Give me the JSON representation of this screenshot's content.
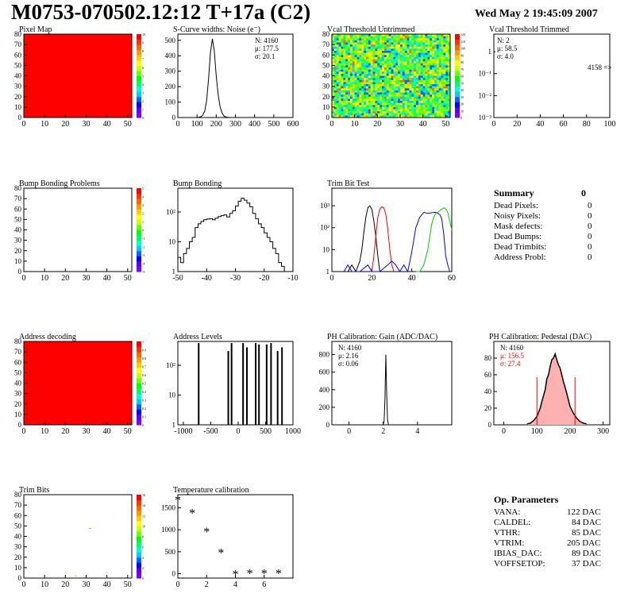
{
  "header": {
    "title": "M0753-070502.12:12 T+17a (C2)",
    "date": "Wed May  2 19:45:09 2007"
  },
  "colors": {
    "map_red": "#ff0000",
    "hist_red": "#ff0000",
    "hist_blue": "#0000ff",
    "hist_green": "#00cc00",
    "palette": [
      "#8000ff",
      "#5a00ff",
      "#0000ff",
      "#0066ff",
      "#00ccff",
      "#00ffcc",
      "#00ff66",
      "#00ff00",
      "#66ff00",
      "#ccff00",
      "#ffff00",
      "#ffcc00",
      "#ff9900",
      "#ff6600",
      "#ff3300",
      "#ff0000"
    ]
  },
  "chart_data": [
    {
      "id": "pixel_map",
      "type": "heatmap",
      "title": "Pixel Map",
      "xlim": [
        0,
        52
      ],
      "ylim": [
        0,
        80
      ],
      "xticks": [
        "0",
        "10",
        "20",
        "30",
        "40",
        "50"
      ],
      "yticks": [
        "0",
        "10",
        "20",
        "30",
        "40",
        "50",
        "60",
        "70",
        "80"
      ],
      "zticks": [
        "0",
        "1",
        "2",
        "3",
        "4",
        "5",
        "6",
        "7",
        "8",
        "9",
        "10"
      ],
      "fill": "uniform",
      "value": 10
    },
    {
      "id": "scurve",
      "type": "line",
      "title": "S-Curve widths: Noise (e⁻)",
      "xlim": [
        0,
        600
      ],
      "ylim": [
        0,
        540
      ],
      "xticks": [
        "0",
        "100",
        "200",
        "300",
        "400",
        "500",
        "600"
      ],
      "yticks": [
        "0",
        "100",
        "200",
        "300",
        "400",
        "500"
      ],
      "stats": {
        "N": "4160",
        "mu": "177.5",
        "sigma": "20.1"
      },
      "x": [
        100,
        110,
        120,
        130,
        140,
        150,
        160,
        170,
        180,
        190,
        200,
        210,
        220,
        230,
        240,
        250,
        260,
        270
      ],
      "y": [
        0,
        2,
        5,
        15,
        40,
        110,
        250,
        420,
        510,
        430,
        270,
        150,
        70,
        30,
        10,
        4,
        1,
        0
      ]
    },
    {
      "id": "vcal_untrimmed",
      "type": "heatmap",
      "title": "Vcal Threshold Untrimmed",
      "xlim": [
        0,
        52
      ],
      "ylim": [
        0,
        80
      ],
      "xticks": [
        "0",
        "10",
        "20",
        "30",
        "40",
        "50"
      ],
      "yticks": [
        "0",
        "10",
        "20",
        "30",
        "40",
        "50",
        "60",
        "70",
        "80"
      ],
      "zticks": [
        "0",
        "10",
        "20",
        "30",
        "40",
        "50",
        "60",
        "70",
        "80",
        "90",
        "100",
        "110",
        "120"
      ],
      "fill": "noise"
    },
    {
      "id": "vcal_trimmed",
      "type": "bar",
      "title": "Vcal Threshold Trimmed",
      "xlim": [
        0,
        100
      ],
      "log_y": true,
      "xticks": [
        "0",
        "20",
        "40",
        "60",
        "80",
        "100"
      ],
      "yticks": [
        "10⁻³",
        "10⁻²",
        "10⁻¹",
        "1"
      ],
      "stats": {
        "N": "2",
        "mu": "58.5",
        "sigma": "4.0"
      },
      "overflow_label": "4158 =>",
      "bars": [
        {
          "x": 54,
          "y": 1
        },
        {
          "x": 63,
          "y": 1
        }
      ]
    },
    {
      "id": "bump_problems",
      "type": "heatmap",
      "title": "Bump Bonding Problems",
      "xlim": [
        0,
        52
      ],
      "ylim": [
        0,
        80
      ],
      "xticks": [
        "0",
        "10",
        "20",
        "30",
        "40",
        "50"
      ],
      "yticks": [
        "0",
        "10",
        "20",
        "30",
        "40",
        "50",
        "60",
        "70",
        "80"
      ],
      "zticks": [
        "-5",
        "-4",
        "-3",
        "-2",
        "-1",
        "0",
        "1",
        "2",
        "3",
        "4",
        "5"
      ],
      "fill": "empty"
    },
    {
      "id": "bump_bonding",
      "type": "line",
      "title": "Bump Bonding",
      "xlim": [
        -50,
        -10
      ],
      "log_y": true,
      "xticks": [
        "-50",
        "-40",
        "-30",
        "-20",
        "-10"
      ],
      "yticks": [
        "1",
        "10",
        "10²"
      ],
      "x": [
        -50,
        -49,
        -48,
        -47,
        -46,
        -45,
        -44,
        -43,
        -42,
        -41,
        -40,
        -39,
        -38,
        -37,
        -36,
        -35,
        -34,
        -33,
        -32,
        -31,
        -30,
        -29,
        -28,
        -27,
        -26,
        -25,
        -24,
        -23,
        -22,
        -21,
        -20,
        -19,
        -18,
        -17,
        -16,
        -15,
        -14,
        -13
      ],
      "y": [
        3,
        2,
        4,
        6,
        10,
        14,
        30,
        40,
        48,
        55,
        58,
        60,
        55,
        62,
        70,
        75,
        80,
        68,
        90,
        110,
        160,
        230,
        290,
        250,
        200,
        150,
        90,
        60,
        40,
        30,
        20,
        14,
        10,
        6,
        4,
        2,
        1.5,
        1
      ]
    },
    {
      "id": "trim_bits_test",
      "type": "line",
      "title": "Trim Bit Test",
      "xlim": [
        0,
        60
      ],
      "log_y": true,
      "xticks": [
        "0",
        "20",
        "40",
        "60"
      ],
      "yticks": [
        "1",
        "10",
        "10²",
        "10³"
      ],
      "series": [
        {
          "color": "#000000",
          "x": [
            8,
            10,
            12,
            14,
            15,
            16,
            17,
            18,
            19,
            20,
            21,
            22,
            23,
            24
          ],
          "y": [
            1,
            2,
            1,
            3,
            10,
            60,
            300,
            800,
            1000,
            700,
            200,
            40,
            5,
            1
          ]
        },
        {
          "color": "#ff0000",
          "x": [
            20,
            21,
            22,
            23,
            24,
            25,
            26,
            27,
            28,
            29,
            30,
            31
          ],
          "y": [
            1,
            5,
            40,
            300,
            700,
            900,
            800,
            400,
            80,
            10,
            2,
            1
          ]
        },
        {
          "color": "#0000ff",
          "x": [
            6,
            8,
            10,
            14,
            18,
            20,
            24,
            28,
            30,
            32,
            34,
            36,
            38,
            40,
            42,
            44,
            46,
            48,
            50,
            52,
            54,
            55,
            56,
            57,
            58,
            59
          ],
          "y": [
            1,
            2,
            1,
            1,
            2,
            1,
            1,
            2,
            3,
            2,
            1,
            2,
            1,
            8,
            100,
            300,
            500,
            450,
            480,
            500,
            400,
            250,
            50,
            5,
            2,
            1
          ]
        },
        {
          "color": "#00cc00",
          "x": [
            42,
            44,
            46,
            48,
            49,
            50,
            51,
            52,
            53,
            54,
            55,
            56,
            57,
            58,
            59,
            60
          ],
          "y": [
            1,
            1,
            2,
            10,
            40,
            150,
            300,
            450,
            500,
            600,
            700,
            800,
            700,
            500,
            200,
            80
          ]
        }
      ]
    },
    {
      "id": "address_decoding",
      "type": "heatmap",
      "title": "Address decoding",
      "xlim": [
        0,
        52
      ],
      "ylim": [
        0,
        80
      ],
      "xticks": [
        "0",
        "10",
        "20",
        "30",
        "40",
        "50"
      ],
      "yticks": [
        "0",
        "10",
        "20",
        "30",
        "40",
        "50",
        "60",
        "70",
        "80"
      ],
      "zticks": [
        "0",
        "0.1",
        "0.2",
        "0.3",
        "0.4",
        "0.5",
        "0.6",
        "0.7",
        "0.8",
        "0.9",
        "1"
      ],
      "fill": "uniform",
      "value": 1
    },
    {
      "id": "address_levels",
      "type": "bar",
      "title": "Address Levels",
      "xlim": [
        -1100,
        1000
      ],
      "log_y": true,
      "xticks": [
        "-1000",
        "-500",
        "0",
        "500",
        "1000"
      ],
      "yticks": [
        "1",
        "10",
        "10²"
      ],
      "bars": [
        {
          "x": -720,
          "y": 1000
        },
        {
          "x": -180,
          "y": 300
        },
        {
          "x": -120,
          "y": 600
        },
        {
          "x": 90,
          "y": 700
        },
        {
          "x": 160,
          "y": 400
        },
        {
          "x": 320,
          "y": 600
        },
        {
          "x": 380,
          "y": 500
        },
        {
          "x": 520,
          "y": 500
        },
        {
          "x": 600,
          "y": 900
        },
        {
          "x": 720,
          "y": 300
        },
        {
          "x": 800,
          "y": 400
        }
      ]
    },
    {
      "id": "ph_gain",
      "type": "bar",
      "title": "PH Calibration: Gain (ADC/DAC)",
      "xlim": [
        -1,
        6
      ],
      "ylim": [
        0,
        950
      ],
      "xticks": [
        "0",
        "2",
        "4"
      ],
      "yticks": [
        "0",
        "200",
        "400",
        "600",
        "800"
      ],
      "stats": {
        "N": "4160",
        "mu": "2.16",
        "sigma": "0.06"
      },
      "x": [
        2.0,
        2.05,
        2.1,
        2.15,
        2.2,
        2.25,
        2.3
      ],
      "y": [
        5,
        40,
        300,
        800,
        350,
        60,
        5
      ]
    },
    {
      "id": "ph_pedestal",
      "type": "line",
      "title": "PH Calibration: Pedestal (DAC)",
      "xlim": [
        -30,
        320
      ],
      "ylim": [
        0,
        100
      ],
      "xticks": [
        "0",
        "100",
        "200",
        "300"
      ],
      "yticks": [
        "0",
        "20",
        "40",
        "60",
        "80"
      ],
      "stats": {
        "N": "4160",
        "mu": "156.5",
        "sigma": "27.4"
      },
      "fit_lines": [
        100,
        215
      ],
      "x": [
        70,
        80,
        90,
        100,
        110,
        115,
        120,
        125,
        130,
        135,
        140,
        145,
        150,
        155,
        160,
        165,
        170,
        175,
        180,
        185,
        190,
        195,
        200,
        210,
        220,
        230,
        240,
        250
      ],
      "y": [
        1,
        2,
        5,
        10,
        20,
        28,
        35,
        42,
        55,
        60,
        70,
        78,
        80,
        85,
        78,
        72,
        68,
        60,
        52,
        45,
        38,
        30,
        22,
        14,
        8,
        4,
        2,
        1
      ]
    },
    {
      "id": "trim_bits",
      "type": "heatmap",
      "title": "Trim Bits",
      "xlim": [
        0,
        52
      ],
      "ylim": [
        0,
        80
      ],
      "xticks": [
        "0",
        "10",
        "20",
        "30",
        "40",
        "50"
      ],
      "yticks": [
        "0",
        "10",
        "20",
        "30",
        "40",
        "50",
        "60",
        "70",
        "80"
      ],
      "zticks": [
        "0",
        "2",
        "4",
        "6",
        "8",
        "10",
        "12",
        "14",
        "16"
      ],
      "fill": "sparse"
    },
    {
      "id": "temperature",
      "type": "scatter",
      "title": "Temperature calibration",
      "xlim": [
        0,
        8
      ],
      "ylim": [
        -100,
        1800
      ],
      "xticks": [
        "0",
        "2",
        "4",
        "6"
      ],
      "yticks": [
        "0",
        "500",
        "1000",
        "1500"
      ],
      "x": [
        0,
        1,
        2,
        3,
        4,
        5,
        6,
        7
      ],
      "y": [
        1690,
        1390,
        970,
        490,
        0,
        20,
        20,
        20
      ]
    }
  ],
  "summary": {
    "title": "Summary",
    "total": "0",
    "rows": [
      {
        "label": "Dead Pixels:",
        "value": "0"
      },
      {
        "label": "Noisy Pixels:",
        "value": "0"
      },
      {
        "label": "Mask defects:",
        "value": "0"
      },
      {
        "label": "Dead Bumps:",
        "value": "0"
      },
      {
        "label": "Dead Trimbits:",
        "value": "0"
      },
      {
        "label": "Address Probl:",
        "value": "0"
      }
    ]
  },
  "op_params": {
    "title": "Op. Parameters",
    "rows": [
      {
        "label": "VANA:",
        "value": "122 DAC"
      },
      {
        "label": "CALDEL:",
        "value": "84 DAC"
      },
      {
        "label": "VTHR:",
        "value": "85 DAC"
      },
      {
        "label": "VTRIM:",
        "value": "205 DAC"
      },
      {
        "label": "IBIAS_DAC:",
        "value": "89 DAC"
      },
      {
        "label": "VOFFSETOP:",
        "value": "37 DAC"
      }
    ]
  }
}
